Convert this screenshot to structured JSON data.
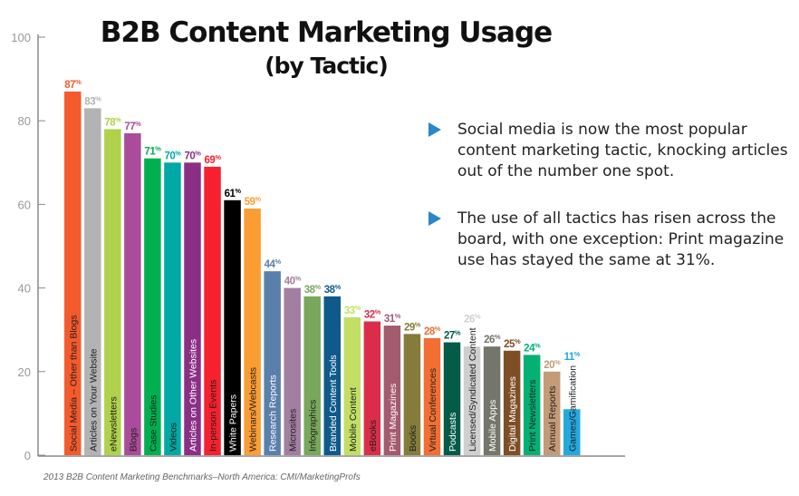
{
  "chart_data": {
    "type": "bar",
    "title": "B2B Content Marketing Usage",
    "subtitle": "(by Tactic)",
    "ylim": [
      0,
      100
    ],
    "yticks": [
      "0",
      "20",
      "40",
      "60",
      "80",
      "100"
    ],
    "grid": false,
    "categories": [
      "Social Media – Other than Blogs",
      "Articles on Your Website",
      "eNewsletters",
      "Blogs",
      "Case Studies",
      "Videos",
      "Articles on Other Websites",
      "In-person Events",
      "White Papers",
      "Webinars/Webcasts",
      "Research Reports",
      "Microsites",
      "Infographics",
      "Branded Content Tools",
      "Mobile Content",
      "eBooks",
      "Print Magazines",
      "Books",
      "Virtual Conferences",
      "Podcasts",
      "Licensed/Syndicated Content",
      "Mobile Apps",
      "Digital Magazines",
      "Print Newsletters",
      "Annual Reports",
      "Games/Gamification"
    ],
    "values": [
      87,
      83,
      78,
      77,
      71,
      70,
      70,
      69,
      61,
      59,
      44,
      40,
      38,
      38,
      33,
      32,
      31,
      29,
      28,
      27,
      26,
      26,
      25,
      24,
      20,
      11
    ],
    "value_suffix": "%",
    "colors": [
      "#f55a2c",
      "#b3b3b3",
      "#b0d14b",
      "#aa4b9b",
      "#00b050",
      "#00a9a5",
      "#8b2f86",
      "#f7202f",
      "#000000",
      "#fb9d33",
      "#5a7fab",
      "#a27ea0",
      "#78a85c",
      "#0e5a8a",
      "#c3de64",
      "#da2e48",
      "#a45a6f",
      "#857b3a",
      "#f26e33",
      "#045b48",
      "#cfcfcf",
      "#74766b",
      "#7e4e25",
      "#04b175",
      "#c39b77",
      "#23a9df"
    ],
    "label_colors": [
      "#222",
      "#222",
      "#222",
      "#222",
      "#222",
      "#222",
      "#fff",
      "#222",
      "#fff",
      "#222",
      "#fff",
      "#222",
      "#222",
      "#fff",
      "#222",
      "#222",
      "#fff",
      "#222",
      "#222",
      "#fff",
      "#222",
      "#fff",
      "#fff",
      "#222",
      "#222",
      "#222"
    ]
  },
  "notes": [
    "Social media is now the most popular content marketing tactic, knocking articles out of the number one spot.",
    "The use of all tactics has risen across the board, with one exception: Print magazine use has stayed the same at 31%."
  ],
  "source": "2013 B2B Content Marketing Benchmarks–North America: CMI/MarketingProfs",
  "accent_color": "#2a87c8"
}
